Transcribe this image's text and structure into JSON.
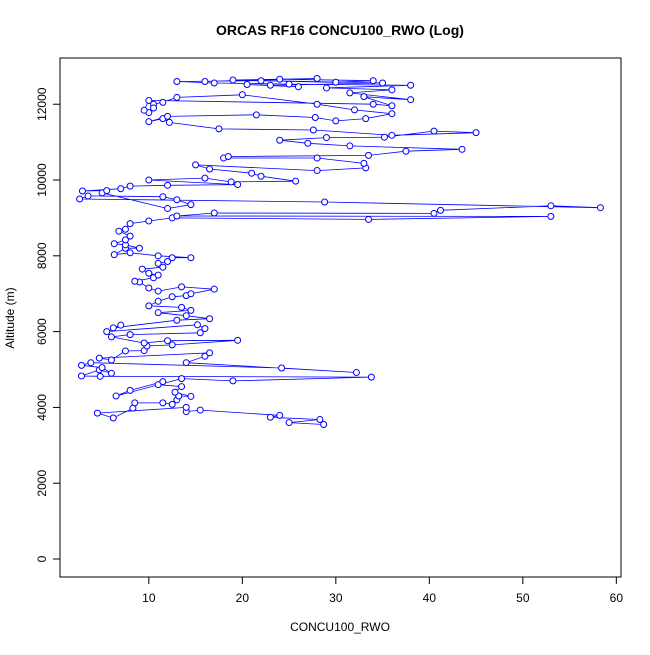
{
  "chart_data": {
    "type": "line",
    "title": "ORCAS RF16 CONCU100_RWO (Log)",
    "x_label": "CONCU100_RWO",
    "y_label": "Altitude (m)",
    "xlim": [
      0.5,
      60.5
    ],
    "ylim": [
      -475,
      13220
    ],
    "xticks": [
      10,
      20,
      30,
      40,
      50,
      60
    ],
    "yticks": [
      0,
      2000,
      4000,
      6000,
      8000,
      10000,
      12000
    ],
    "grid": false,
    "series": [
      {
        "color": "#0000ff",
        "x": [
          28.7,
          25,
          28.3,
          23,
          24,
          15.5,
          14,
          14,
          4.5,
          6.2,
          8.3,
          8.5,
          11.5,
          12.5,
          13,
          13.2,
          14.5,
          12.8,
          13.5,
          11,
          11.5,
          8,
          6.5,
          13.5,
          19,
          33.8,
          4.8,
          2.8,
          4.7,
          6,
          5,
          2.8,
          3.8,
          24.2,
          32.2,
          14,
          16,
          16.5,
          4.7,
          6,
          7.5,
          9.5,
          9.8,
          12.5,
          19.5,
          12,
          9.5,
          6,
          8,
          15.5,
          16,
          15.2,
          5.5,
          7,
          6.2,
          13,
          16.5,
          14,
          11,
          14.5,
          13.5,
          10,
          11,
          12.5,
          14,
          14.5,
          17,
          13.5,
          11,
          10,
          9,
          8.5,
          10.5,
          11,
          10,
          9.3,
          11.5,
          11,
          12,
          12.5,
          14.5,
          11,
          8,
          6.3,
          7.5,
          9,
          7.5,
          6.3,
          7.5,
          8,
          6.8,
          7.5,
          8,
          10,
          12.5,
          33.5,
          53,
          13,
          17,
          40.5,
          41.2,
          53,
          58.3,
          28.8,
          2.6,
          3.5,
          11.5,
          13,
          14.5,
          12,
          5,
          5.5,
          2.9,
          7,
          8,
          12,
          19.5,
          10,
          16,
          18.8,
          25.7,
          22,
          21,
          16.5,
          15,
          28,
          33.2,
          33,
          28,
          18,
          18.5,
          33.5,
          37.5,
          43.5,
          31.5,
          27,
          24,
          29,
          35.2,
          40.5,
          45,
          36,
          27.6,
          17.5,
          12.2,
          11.5,
          10,
          12,
          21.5,
          27.8,
          30,
          33.2,
          36,
          32,
          28,
          20,
          13,
          11.5,
          10.5,
          10.5,
          10,
          9.5,
          10,
          34,
          36,
          33,
          38,
          31.5,
          36,
          29,
          38,
          25,
          17,
          13,
          22,
          30,
          34,
          24,
          16,
          28,
          19,
          35,
          23,
          20.5,
          26
        ],
        "values": [
          3550,
          3600,
          3680,
          3740,
          3790,
          3930,
          3890,
          4000,
          3850,
          3720,
          3980,
          4120,
          4120,
          4080,
          4200,
          4300,
          4290,
          4400,
          4550,
          4600,
          4680,
          4450,
          4300,
          4760,
          4700,
          4800,
          4820,
          4830,
          4990,
          4900,
          5050,
          5110,
          5180,
          5040,
          4920,
          5180,
          5350,
          5440,
          5300,
          5250,
          5490,
          5500,
          5620,
          5650,
          5770,
          5760,
          5700,
          5860,
          5920,
          5970,
          6080,
          6180,
          6000,
          6170,
          6100,
          6300,
          6340,
          6420,
          6500,
          6560,
          6640,
          6680,
          6800,
          6920,
          6950,
          7000,
          7120,
          7180,
          7070,
          7150,
          7310,
          7330,
          7420,
          7490,
          7540,
          7650,
          7700,
          7800,
          7850,
          7950,
          7950,
          8000,
          8080,
          8030,
          8200,
          8200,
          8290,
          8320,
          8420,
          8520,
          8650,
          8700,
          8850,
          8920,
          9000,
          8960,
          9040,
          9050,
          9130,
          9120,
          9200,
          9320,
          9270,
          9420,
          9500,
          9580,
          9560,
          9480,
          9350,
          9250,
          9660,
          9720,
          9710,
          9770,
          9840,
          9860,
          9880,
          10000,
          10050,
          9950,
          9970,
          10100,
          10180,
          10290,
          10400,
          10250,
          10320,
          10440,
          10580,
          10580,
          10620,
          10650,
          10760,
          10810,
          10900,
          10970,
          11050,
          11120,
          11130,
          11290,
          11250,
          11180,
          11320,
          11350,
          11520,
          11620,
          11540,
          11680,
          11720,
          11650,
          11560,
          11620,
          11750,
          11850,
          12000,
          12250,
          12180,
          12050,
          12000,
          11900,
          11780,
          11840,
          12100,
          12000,
          11960,
          12200,
          12120,
          12300,
          12380,
          12430,
          12500,
          12530,
          12560,
          12600,
          12620,
          12580,
          12620,
          12660,
          12600,
          12680,
          12640,
          12560,
          12500,
          12520,
          12460
        ]
      }
    ]
  }
}
